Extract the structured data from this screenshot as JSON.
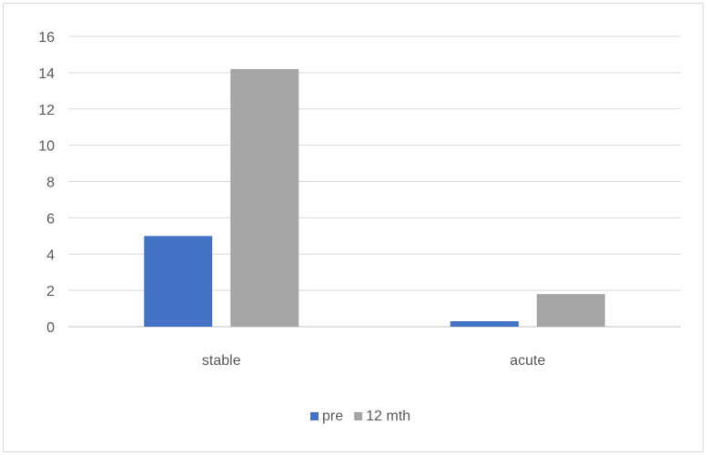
{
  "chart_data": {
    "type": "bar",
    "title": "",
    "xlabel": "",
    "ylabel": "",
    "categories": [
      "stable",
      "acute"
    ],
    "series": [
      {
        "name": "pre",
        "values": [
          5.0,
          0.3
        ],
        "color": "#4472c4"
      },
      {
        "name": "12 mth",
        "values": [
          14.2,
          1.8
        ],
        "color": "#a5a5a5"
      }
    ],
    "ylim": [
      0,
      16
    ],
    "yticks": [
      "0",
      "2",
      "4",
      "6",
      "8",
      "10",
      "12",
      "14",
      "16"
    ],
    "grid": true,
    "legend_position": "bottom"
  }
}
